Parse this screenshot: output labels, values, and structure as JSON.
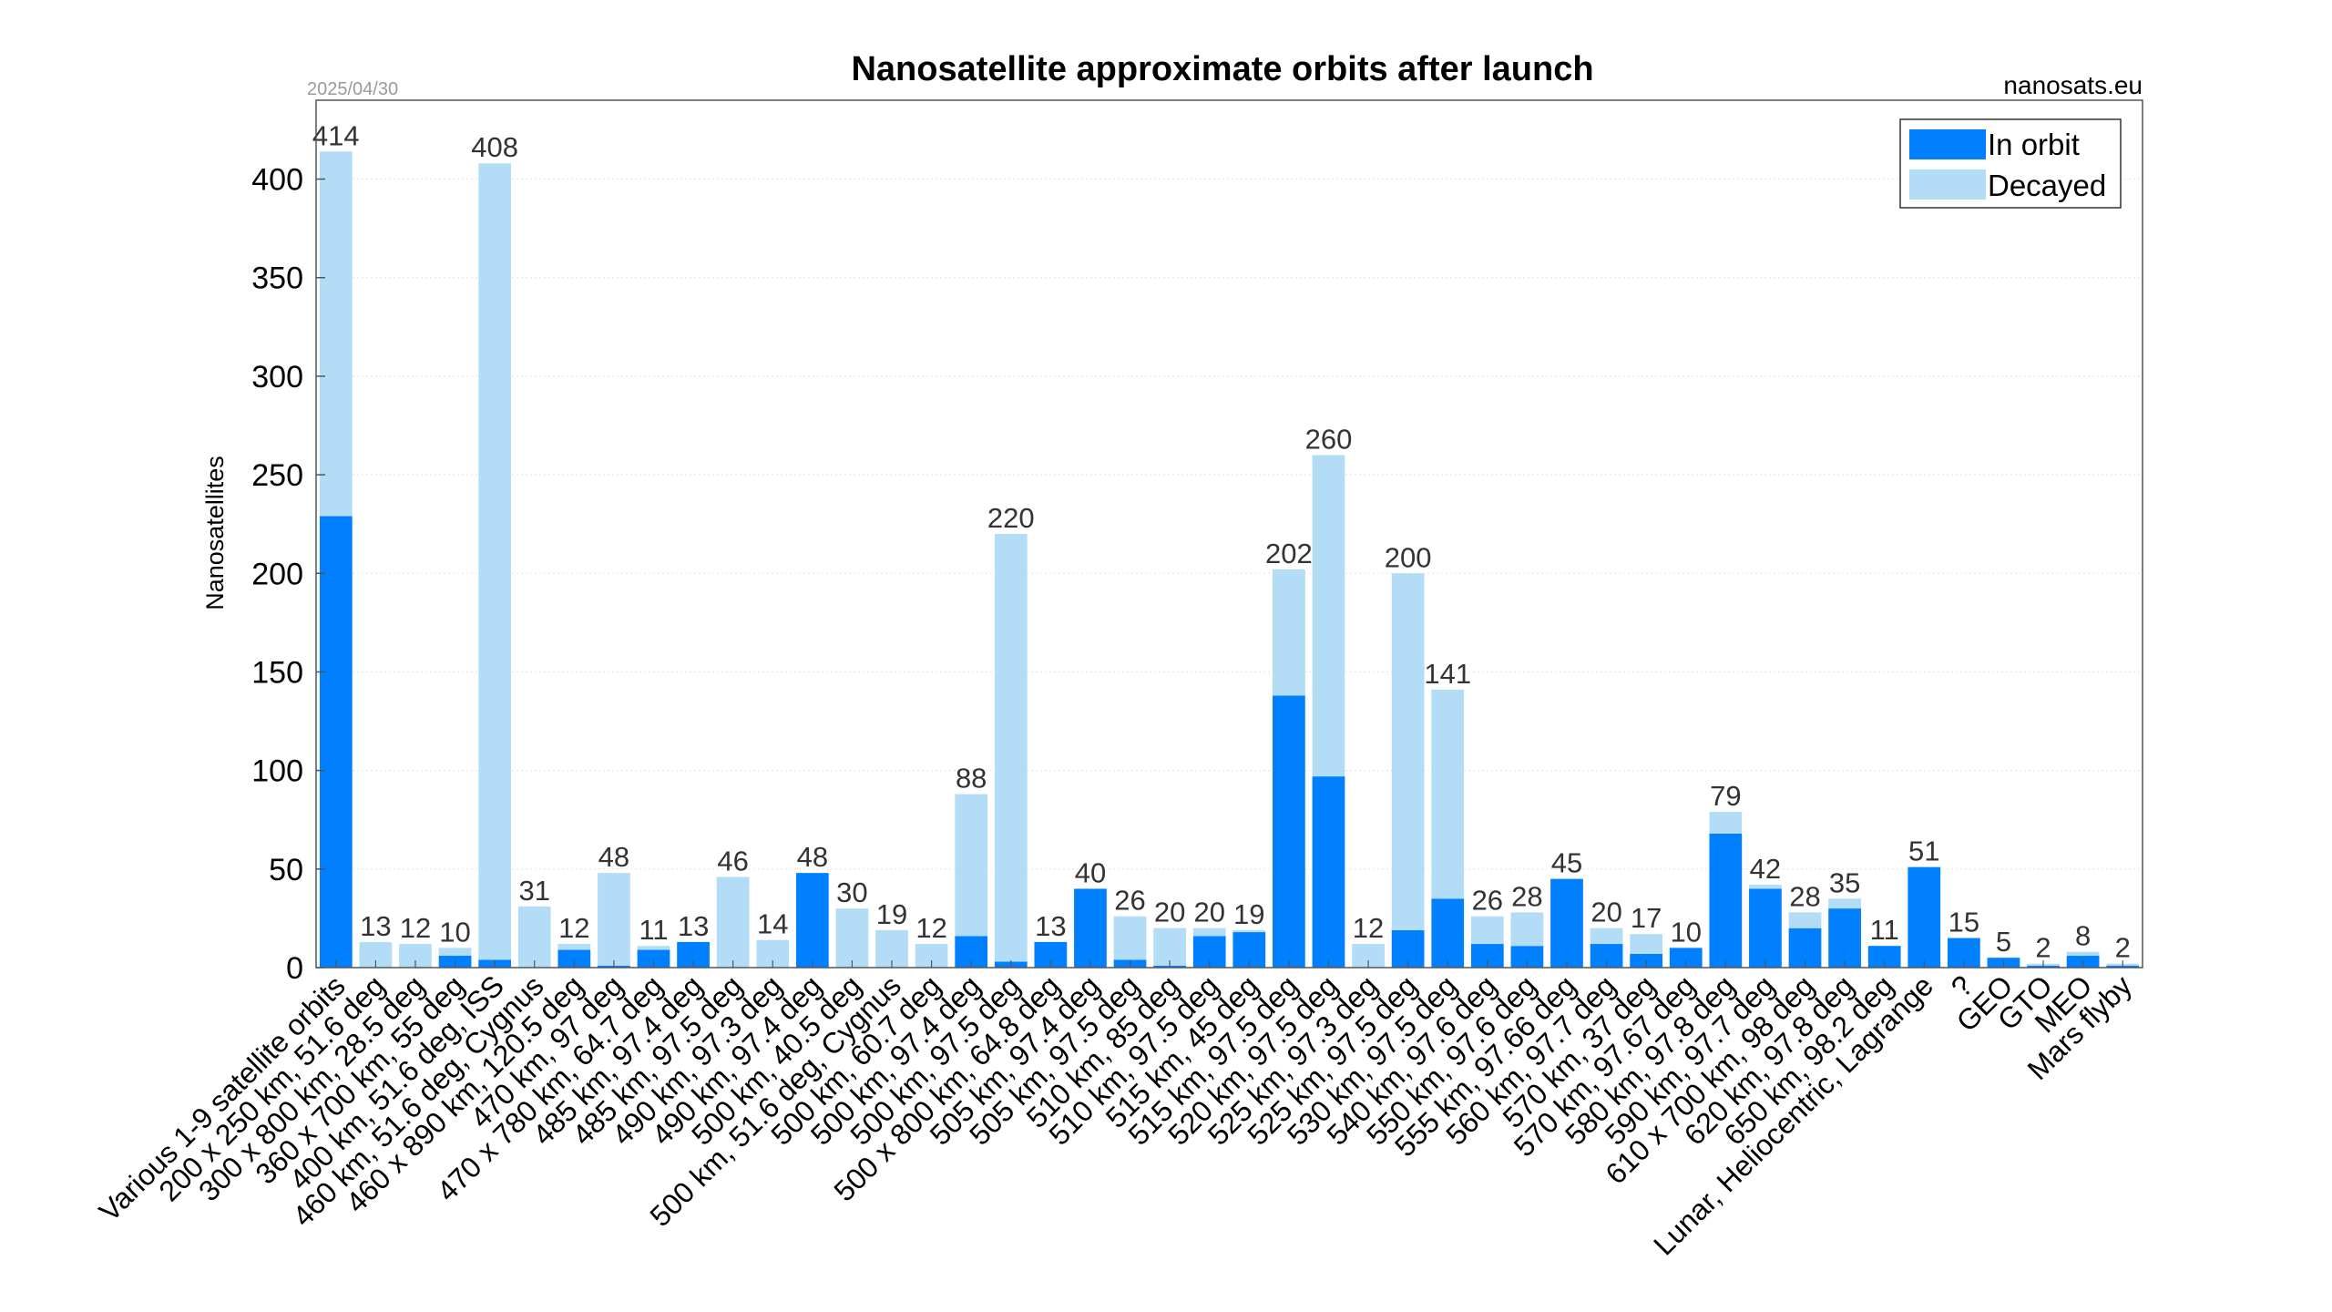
{
  "chart_data": {
    "type": "bar",
    "stacked": true,
    "title": "Nanosatellite approximate orbits after launch",
    "date": "2025/04/30",
    "source": "nanosats.eu",
    "ylabel": "Nanosatellites",
    "xlabel": "",
    "ylim": [
      0,
      440
    ],
    "yticks": [
      0,
      50,
      100,
      150,
      200,
      250,
      300,
      350,
      400
    ],
    "grid": true,
    "legend_position": "top-right",
    "categories": [
      "Various 1-9 satellite orbits",
      "200 x 250 km, 51.6 deg",
      "300 x 800 km, 28.5 deg",
      "360 x 700 km, 55 deg",
      "400 km, 51.6 deg, ISS",
      "460 km, 51.6 deg, Cygnus",
      "460 x 890 km, 120.5 deg",
      "470 km, 97 deg",
      "470 x 780 km, 64.7 deg",
      "485 km, 97.4 deg",
      "485 km, 97.5 deg",
      "490 km, 97.3 deg",
      "490 km, 97.4 deg",
      "500 km, 40.5 deg",
      "500 km, 51.6 deg, Cygnus",
      "500 km, 60.7 deg",
      "500 km, 97.4 deg",
      "500 km, 97.5 deg",
      "500 x 800 km, 64.8 deg",
      "505 km, 97.4 deg",
      "505 km, 97.5 deg",
      "510 km, 85 deg",
      "510 km, 97.5 deg",
      "515 km, 45 deg",
      "515 km, 97.5 deg",
      "520 km, 97.5 deg",
      "525 km, 97.3 deg",
      "525 km, 97.5 deg",
      "530 km, 97.5 deg",
      "540 km, 97.6 deg",
      "550 km, 97.6 deg",
      "555 km, 97.66 deg",
      "560 km, 97.7 deg",
      "570 km, 37 deg",
      "570 km, 97.67 deg",
      "580 km, 97.8 deg",
      "590 km, 97.7 deg",
      "610 x 700 km, 98 deg",
      "620 km, 97.8 deg",
      "650 km, 98.2 deg",
      "Lunar, Heliocentric, Lagrange",
      "?",
      "GEO",
      "GTO",
      "MEO",
      "Mars flyby"
    ],
    "totals": [
      414,
      13,
      12,
      10,
      408,
      31,
      12,
      48,
      11,
      13,
      46,
      14,
      48,
      30,
      19,
      12,
      88,
      220,
      13,
      40,
      26,
      20,
      20,
      19,
      202,
      260,
      12,
      200,
      141,
      26,
      28,
      45,
      20,
      17,
      10,
      79,
      42,
      28,
      35,
      11,
      51,
      15,
      5,
      2,
      8,
      2
    ],
    "series": [
      {
        "name": "In orbit",
        "color": "#0080ff",
        "values": [
          229,
          0,
          0,
          6,
          4,
          0,
          9,
          1,
          9,
          13,
          0,
          0,
          48,
          0,
          0,
          0,
          16,
          3,
          13,
          40,
          4,
          1,
          16,
          18,
          138,
          97,
          0,
          19,
          35,
          12,
          11,
          45,
          12,
          7,
          10,
          68,
          40,
          20,
          30,
          11,
          51,
          15,
          5,
          1,
          6,
          1
        ]
      },
      {
        "name": "Decayed",
        "color": "#b3dcf7",
        "values": [
          185,
          13,
          12,
          4,
          404,
          31,
          3,
          47,
          2,
          0,
          46,
          14,
          0,
          30,
          19,
          12,
          72,
          217,
          0,
          0,
          22,
          19,
          4,
          1,
          64,
          163,
          12,
          181,
          106,
          14,
          17,
          0,
          8,
          10,
          0,
          11,
          2,
          8,
          5,
          0,
          0,
          0,
          0,
          1,
          2,
          1
        ]
      }
    ]
  }
}
